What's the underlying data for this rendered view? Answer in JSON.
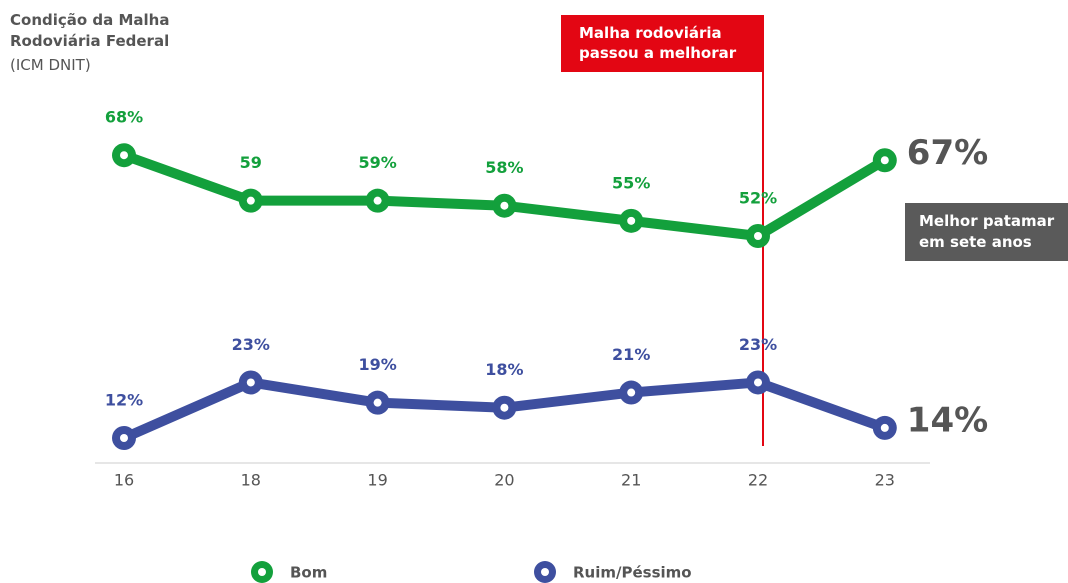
{
  "chart_data": {
    "type": "line",
    "title": "Condição da Malha Rodoviária Federal",
    "subtitle": "(ICM DNIT)",
    "categories": [
      "16",
      "18",
      "19",
      "20",
      "21",
      "22",
      "23"
    ],
    "series": [
      {
        "name": "Bom",
        "color": "#13a03c",
        "values": [
          68,
          59,
          59,
          58,
          55,
          52,
          67
        ],
        "value_labels": [
          "68%",
          "59",
          "59%",
          "58%",
          "55%",
          "52%",
          "67%"
        ]
      },
      {
        "name": "Ruim/Péssimo",
        "color": "#3e4f9f",
        "values": [
          12,
          23,
          19,
          18,
          21,
          23,
          14
        ],
        "value_labels": [
          "12%",
          "23%",
          "19%",
          "18%",
          "21%",
          "23%",
          "14%"
        ]
      }
    ],
    "ylim": [
      0,
      100
    ],
    "annotations": [
      "Malha rodoviária passou a melhorar",
      "Melhor patamar em sete anos"
    ]
  }
}
